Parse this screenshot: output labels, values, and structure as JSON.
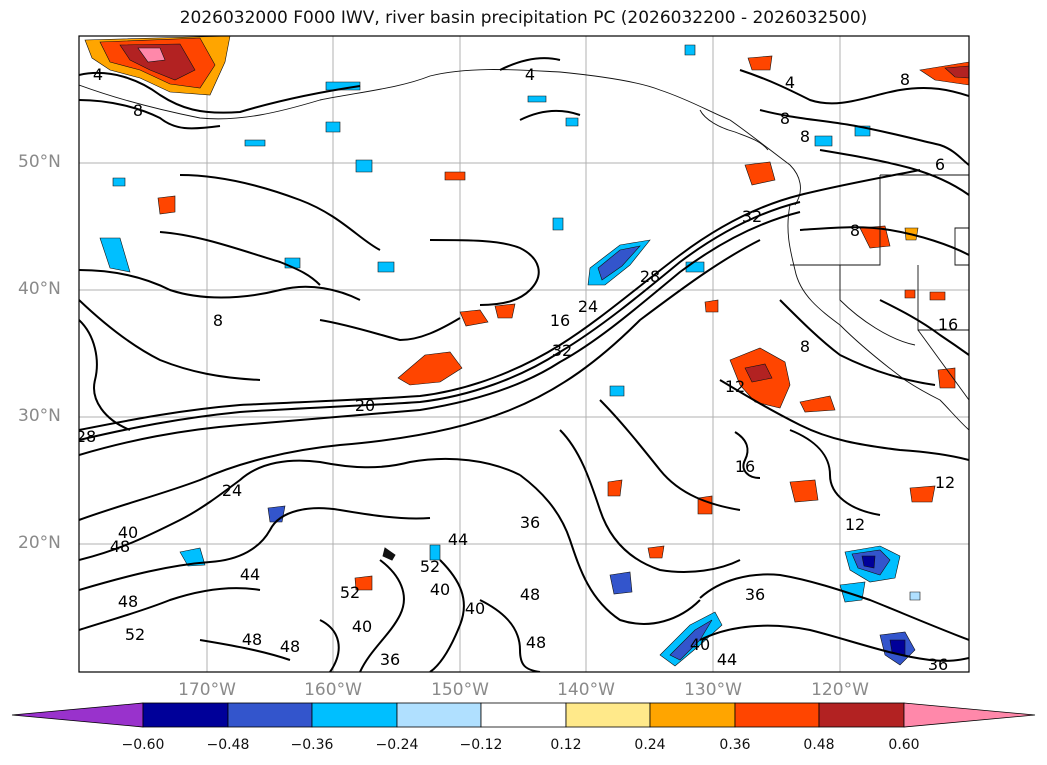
{
  "title": "2026032000 F000 IWV, river basin precipitation PC (2026032200 - 2026032500)",
  "lat_labels": [
    "50°N",
    "40°N",
    "30°N",
    "20°N"
  ],
  "lon_labels": [
    "170°W",
    "160°W",
    "150°W",
    "140°W",
    "130°W",
    "120°W"
  ],
  "colorbar": {
    "ticks": [
      "−0.60",
      "−0.48",
      "−0.36",
      "−0.24",
      "−0.12",
      "0.12",
      "0.24",
      "0.36",
      "0.48",
      "0.60"
    ],
    "colors": [
      "#9932cc",
      "#000099",
      "#3355cc",
      "#00bfff",
      "#b0e0ff",
      "#ffffff",
      "#ffe98a",
      "#ffa500",
      "#ff4500",
      "#b22222",
      "#ff88aa",
      "#ff88aa"
    ]
  },
  "contour_labels": [
    "4",
    "8",
    "8",
    "4",
    "8",
    "4",
    "8",
    "6",
    "8",
    "32",
    "12",
    "28",
    "24",
    "16",
    "32",
    "20",
    "12",
    "16",
    "12",
    "28",
    "40",
    "48",
    "24",
    "44",
    "48",
    "52",
    "48",
    "48",
    "40",
    "52",
    "52",
    "44",
    "40",
    "36",
    "48",
    "48",
    "40",
    "40",
    "44",
    "36",
    "36",
    "36",
    "16",
    "8",
    "8"
  ]
}
